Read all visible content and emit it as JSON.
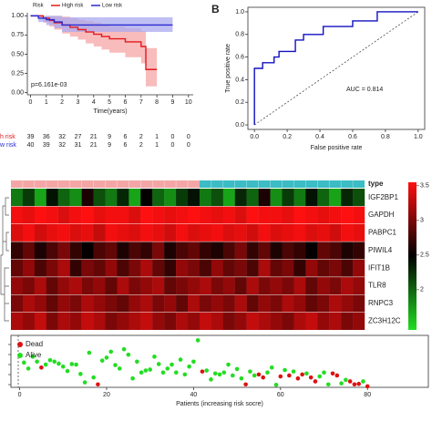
{
  "chart_data": [
    {
      "type": "line",
      "step": true,
      "legend_title": "Risk",
      "xlabel": "Time(years)",
      "annotation": "p=6.161e-03",
      "xlim": [
        -0.2,
        10.3
      ],
      "ylim": [
        -0.03,
        1.04
      ],
      "xticks": [
        0,
        1,
        2,
        3,
        4,
        5,
        6,
        7,
        8,
        9,
        10
      ],
      "yticks": [
        {
          "value": 0,
          "label": "0.00"
        },
        {
          "value": 0.25,
          "label": "0.25"
        },
        {
          "value": 0.5,
          "label": "0.50"
        },
        {
          "value": 0.75,
          "label": "0.75"
        },
        {
          "value": 1,
          "label": "1.00"
        }
      ],
      "series": [
        {
          "name": "High risk",
          "color": "#e41a1c",
          "band_color": "#f6a5a5",
          "x": [
            0,
            0.8,
            1.2,
            1.5,
            2.0,
            2.5,
            3.0,
            3.5,
            4.0,
            4.5,
            5.0,
            6.0,
            7.0,
            7.3,
            8.0
          ],
          "values": [
            1,
            0.97,
            0.94,
            0.91,
            0.88,
            0.85,
            0.82,
            0.79,
            0.76,
            0.73,
            0.7,
            0.66,
            0.6,
            0.3,
            0.3
          ],
          "lower": [
            1,
            0.91,
            0.86,
            0.82,
            0.77,
            0.73,
            0.69,
            0.64,
            0.6,
            0.56,
            0.52,
            0.46,
            0.38,
            0.08,
            0.08
          ],
          "upper": [
            1,
            1,
            1,
            1,
            0.99,
            0.97,
            0.95,
            0.93,
            0.91,
            0.88,
            0.86,
            0.84,
            0.8,
            0.58,
            0.58
          ]
        },
        {
          "name": "Low risk",
          "color": "#2a2ad0",
          "band_color": "#a9a9f0",
          "x": [
            0,
            0.5,
            1.0,
            1.5,
            2.0,
            9.0
          ],
          "values": [
            1,
            0.97,
            0.95,
            0.92,
            0.88,
            0.88
          ],
          "lower": [
            1,
            0.92,
            0.88,
            0.84,
            0.79,
            0.66
          ],
          "upper": [
            1,
            1,
            1,
            1,
            0.98,
            0.99
          ]
        }
      ]
    },
    {
      "type": "table",
      "rows": [
        {
          "name": "h risk",
          "color": "#e41a1c",
          "values": [
            39,
            36,
            32,
            27,
            21,
            9,
            6,
            2,
            1,
            0,
            0
          ]
        },
        {
          "name": "w risk",
          "color": "#2a2ad0",
          "values": [
            40,
            39,
            32,
            31,
            21,
            9,
            6,
            2,
            1,
            0,
            0
          ]
        }
      ]
    },
    {
      "type": "line",
      "step": false,
      "panel_label": "B",
      "xlabel": "False positive rate",
      "ylabel": "True positive rate",
      "annotation": "AUC = 0.814",
      "xlim": [
        -0.04,
        1.04
      ],
      "ylim": [
        -0.04,
        1.04
      ],
      "xticks": [
        {
          "value": 0,
          "label": "0.0"
        },
        {
          "value": 0.2,
          "label": "0.2"
        },
        {
          "value": 0.4,
          "label": "0.4"
        },
        {
          "value": 0.6,
          "label": "0.6"
        },
        {
          "value": 0.8,
          "label": "0.8"
        },
        {
          "value": 1,
          "label": "1.0"
        }
      ],
      "yticks": [
        {
          "value": 0,
          "label": "0.0"
        },
        {
          "value": 0.2,
          "label": "0.2"
        },
        {
          "value": 0.4,
          "label": "0.4"
        },
        {
          "value": 0.6,
          "label": "0.6"
        },
        {
          "value": 0.8,
          "label": "0.8"
        },
        {
          "value": 1,
          "label": "1.0"
        }
      ],
      "series": [
        {
          "color": "#1010c0",
          "x": [
            0,
            0,
            0.05,
            0.05,
            0.12,
            0.12,
            0.15,
            0.15,
            0.25,
            0.25,
            0.3,
            0.3,
            0.42,
            0.42,
            0.6,
            0.6,
            0.75,
            0.75,
            1
          ],
          "values": [
            0,
            0.5,
            0.5,
            0.55,
            0.55,
            0.6,
            0.6,
            0.65,
            0.65,
            0.75,
            0.75,
            0.8,
            0.8,
            0.87,
            0.87,
            0.92,
            0.92,
            1,
            1
          ]
        }
      ]
    },
    {
      "type": "heatmap",
      "legend_title": "type",
      "low_color": "#22dd22",
      "mid_color": "#000000",
      "high_color": "#ff1010",
      "color_lim": [
        1.42,
        3.55
      ],
      "color_ticks": [
        3.5,
        3,
        2.5,
        2
      ],
      "groups": [
        {
          "color": "#f4a6a6",
          "count": 16
        },
        {
          "color": "#3cbcc4",
          "count": 14
        }
      ],
      "rows": [
        "IGF2BP1",
        "GAPDH",
        "PABPC1",
        "PIWIL4",
        "IFIT1B",
        "TLR8",
        "RNPC3",
        "ZC3H12C"
      ],
      "values": [
        [
          1.9,
          2.2,
          1.7,
          2.4,
          2.0,
          1.8,
          2.6,
          2.1,
          1.9,
          2.3,
          1.7,
          2.5,
          2.0,
          1.8,
          2.2,
          2.4,
          1.9,
          2.1,
          1.7,
          2.3,
          2.0,
          2.6,
          1.8,
          2.2,
          1.9,
          2.4,
          2.0,
          1.7,
          2.3,
          2.1
        ],
        [
          3.5,
          3.45,
          3.55,
          3.5,
          3.4,
          3.5,
          3.55,
          3.45,
          3.5,
          3.5,
          3.4,
          3.55,
          3.5,
          3.45,
          3.5,
          3.55,
          3.5,
          3.45,
          3.5,
          3.4,
          3.55,
          3.5,
          3.5,
          3.45,
          3.55,
          3.5,
          3.45,
          3.5,
          3.55,
          3.5
        ],
        [
          3.4,
          3.5,
          3.35,
          3.45,
          3.5,
          3.4,
          3.45,
          3.3,
          3.5,
          3.45,
          3.4,
          3.5,
          3.45,
          3.35,
          3.5,
          3.4,
          3.45,
          3.5,
          3.4,
          3.45,
          3.35,
          3.5,
          3.4,
          3.45,
          3.5,
          3.4,
          3.45,
          3.35,
          3.5,
          3.45
        ],
        [
          2.7,
          2.9,
          2.6,
          2.8,
          3.0,
          2.7,
          2.5,
          2.8,
          2.9,
          2.6,
          2.8,
          2.7,
          3.0,
          2.6,
          2.8,
          2.9,
          2.7,
          2.6,
          2.8,
          3.0,
          2.7,
          2.9,
          2.6,
          2.8,
          2.7,
          2.5,
          2.9,
          2.8,
          2.6,
          2.7
        ],
        [
          2.9,
          3.1,
          2.8,
          3.0,
          3.2,
          2.7,
          3.0,
          2.9,
          3.1,
          2.8,
          3.0,
          3.2,
          2.9,
          2.7,
          3.1,
          3.0,
          2.8,
          3.1,
          2.9,
          3.0,
          2.8,
          3.2,
          2.9,
          3.0,
          2.7,
          3.1,
          2.9,
          3.0,
          2.8,
          3.1
        ],
        [
          3.1,
          3.0,
          3.2,
          2.9,
          3.1,
          3.2,
          3.0,
          3.1,
          2.9,
          3.2,
          3.0,
          3.1,
          3.2,
          2.9,
          3.0,
          3.1,
          3.2,
          3.0,
          3.1,
          2.9,
          3.2,
          3.0,
          3.1,
          3.0,
          3.2,
          2.9,
          3.1,
          3.0,
          3.2,
          3.1
        ],
        [
          3.0,
          3.2,
          3.1,
          2.9,
          3.1,
          3.0,
          3.2,
          3.1,
          3.0,
          2.9,
          3.1,
          3.2,
          3.0,
          3.1,
          2.9,
          3.2,
          3.0,
          3.1,
          3.0,
          3.2,
          2.9,
          3.1,
          3.0,
          3.2,
          3.1,
          2.9,
          3.0,
          3.2,
          3.1,
          3.0
        ],
        [
          3.2,
          3.1,
          3.3,
          3.0,
          3.2,
          3.1,
          3.3,
          3.2,
          3.0,
          3.1,
          3.2,
          3.3,
          3.1,
          3.0,
          3.2,
          3.1,
          3.3,
          3.2,
          3.0,
          3.1,
          3.3,
          3.2,
          3.1,
          3.0,
          3.2,
          3.3,
          3.1,
          3.2,
          3.0,
          3.1
        ]
      ]
    },
    {
      "type": "scatter",
      "xlabel": "Patients (increasing risk socre)",
      "xlim": [
        -2,
        94
      ],
      "ylim": [
        0,
        10.5
      ],
      "xticks": [
        0,
        20,
        40,
        60,
        80
      ],
      "series": [
        {
          "name": "Dead",
          "color": "#dd1111",
          "x": [
            5,
            18,
            42,
            52,
            55,
            56,
            60,
            62,
            64,
            65,
            67,
            68,
            72,
            73,
            76,
            77,
            78,
            80
          ],
          "values": [
            4.0,
            0.6,
            3.2,
            0.6,
            2.6,
            2.0,
            2.2,
            2.4,
            1.8,
            2.6,
            2.0,
            1.2,
            2.8,
            2.4,
            1.2,
            0.6,
            0.7,
            0.2
          ]
        },
        {
          "name": "Alive",
          "color": "#22dd22",
          "x": [
            1,
            2,
            3,
            4,
            6,
            7,
            8,
            9,
            10,
            11,
            12,
            13,
            14,
            15,
            16,
            17,
            19,
            20,
            21,
            22,
            23,
            24,
            25,
            26,
            27,
            28,
            29,
            30,
            31,
            32,
            33,
            34,
            35,
            36,
            37,
            38,
            39,
            40,
            41,
            43,
            44,
            45,
            46,
            47,
            48,
            49,
            50,
            51,
            53,
            54,
            57,
            58,
            59,
            61,
            63,
            66,
            69,
            70,
            71,
            74,
            75,
            79
          ],
          "values": [
            5.0,
            3.8,
            6.2,
            5.2,
            4.6,
            5.5,
            5.2,
            4.8,
            4.2,
            3.3,
            4.7,
            4.6,
            2.7,
            1.0,
            7.0,
            2.0,
            5.4,
            6.0,
            7.2,
            4.5,
            3.8,
            7.7,
            6.6,
            1.8,
            5.2,
            3.0,
            3.4,
            3.6,
            6.2,
            4.7,
            3.0,
            3.8,
            4.6,
            3.0,
            5.6,
            2.6,
            4.2,
            5.2,
            9.5,
            3.4,
            1.6,
            2.8,
            2.6,
            3.0,
            4.6,
            2.4,
            3.7,
            1.8,
            3.2,
            2.4,
            3.0,
            4.0,
            0.5,
            3.5,
            3.2,
            2.8,
            2.2,
            3.0,
            0.6,
            0.8,
            1.5,
            1.2
          ]
        }
      ]
    }
  ]
}
